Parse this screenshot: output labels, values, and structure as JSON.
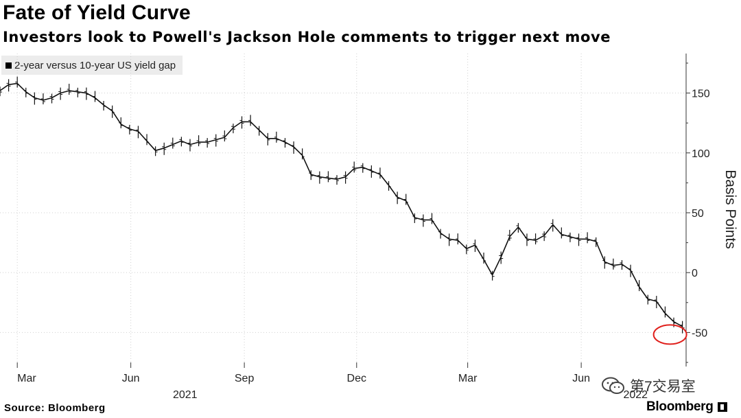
{
  "header": {
    "title": "Fate of Yield Curve",
    "subtitle": "Investors look to Powell's Jackson Hole comments to trigger next move"
  },
  "footer": {
    "source": "Source: Bloomberg",
    "brand": "Bloomberg"
  },
  "watermark": {
    "text": "第7交易室"
  },
  "chart_data": {
    "type": "line",
    "title": "Fate of Yield Curve",
    "subtitle": "Investors look to Powell's Jackson Hole comments to trigger next move",
    "legend": [
      "2-year versus 10-year US yield gap"
    ],
    "legend_position": "top-left",
    "ylabel": "Basis Points",
    "ylim": [
      -75,
      183
    ],
    "yticks": [
      150,
      100,
      50,
      0,
      -50
    ],
    "xlim": [
      "2021-02-15",
      "2022-08-25"
    ],
    "month_ticks": [
      "Mar",
      "Jun",
      "Sep",
      "Dec",
      "Mar",
      "Jun"
    ],
    "month_tick_dates": [
      "2021-03-01",
      "2021-06-01",
      "2021-09-01",
      "2021-12-01",
      "2022-03-01",
      "2022-06-01"
    ],
    "year_labels": [
      "2021",
      "2022"
    ],
    "year_label_dates": [
      "2021-07-15",
      "2022-07-15"
    ],
    "grid": true,
    "annotation": "red circle around the August 2022 low",
    "annotation_point": {
      "date": "2022-08-12",
      "value": -50
    },
    "series": [
      {
        "name": "2-year versus 10-year US yield gap",
        "x": [
          "2021-02-15",
          "2021-02-22",
          "2021-03-01",
          "2021-03-08",
          "2021-03-15",
          "2021-03-22",
          "2021-03-29",
          "2021-04-05",
          "2021-04-12",
          "2021-04-19",
          "2021-04-26",
          "2021-05-03",
          "2021-05-10",
          "2021-05-17",
          "2021-05-24",
          "2021-05-31",
          "2021-06-07",
          "2021-06-14",
          "2021-06-21",
          "2021-06-28",
          "2021-07-05",
          "2021-07-12",
          "2021-07-19",
          "2021-07-26",
          "2021-08-02",
          "2021-08-09",
          "2021-08-16",
          "2021-08-23",
          "2021-08-30",
          "2021-09-06",
          "2021-09-13",
          "2021-09-20",
          "2021-09-27",
          "2021-10-04",
          "2021-10-11",
          "2021-10-18",
          "2021-10-25",
          "2021-11-01",
          "2021-11-08",
          "2021-11-15",
          "2021-11-22",
          "2021-11-29",
          "2021-12-06",
          "2021-12-13",
          "2021-12-20",
          "2021-12-27",
          "2022-01-03",
          "2022-01-10",
          "2022-01-17",
          "2022-01-24",
          "2022-01-31",
          "2022-02-07",
          "2022-02-14",
          "2022-02-21",
          "2022-02-28",
          "2022-03-07",
          "2022-03-14",
          "2022-03-21",
          "2022-03-28",
          "2022-04-04",
          "2022-04-11",
          "2022-04-18",
          "2022-04-25",
          "2022-05-02",
          "2022-05-09",
          "2022-05-16",
          "2022-05-23",
          "2022-05-30",
          "2022-06-06",
          "2022-06-13",
          "2022-06-20",
          "2022-06-27",
          "2022-07-04",
          "2022-07-11",
          "2022-07-18",
          "2022-07-25",
          "2022-08-01",
          "2022-08-08",
          "2022-08-15",
          "2022-08-22"
        ],
        "values": [
          152,
          157,
          158,
          151,
          146,
          144,
          146,
          150,
          152,
          151,
          150,
          146,
          140,
          135,
          124,
          120,
          118,
          110,
          102,
          104,
          107,
          110,
          107,
          109,
          109,
          111,
          113,
          121,
          126,
          126,
          119,
          112,
          112,
          109,
          105,
          98,
          82,
          80,
          79,
          78,
          80,
          87,
          88,
          85,
          82,
          73,
          63,
          60,
          46,
          44,
          44,
          33,
          28,
          27,
          20,
          23,
          11,
          -2,
          13,
          30,
          38,
          28,
          27,
          31,
          40,
          32,
          30,
          28,
          28,
          26,
          9,
          6,
          7,
          2,
          -12,
          -22,
          -24,
          -34,
          -41,
          -45
        ]
      }
    ]
  }
}
